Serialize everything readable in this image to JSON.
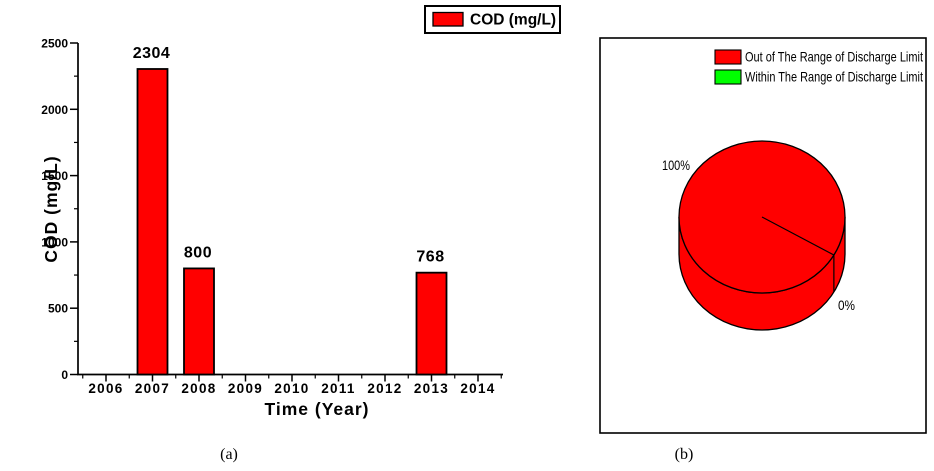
{
  "figure": {
    "background": "#FFFFFF",
    "caption_a": "(a)",
    "caption_b": "(b)"
  },
  "colors": {
    "bar_red": "#FF0000",
    "legend_green": "#00FF00",
    "axis_black": "#000000"
  },
  "chart_data": [
    {
      "type": "bar",
      "panel": "a",
      "title": "",
      "xlabel": "Time (Year)",
      "ylabel": "COD (mg/L)",
      "categories": [
        "2006",
        "2007",
        "2008",
        "2009",
        "2010",
        "2011",
        "2012",
        "2013",
        "2014"
      ],
      "values": [
        0,
        2304,
        800,
        0,
        0,
        0,
        0,
        768,
        0
      ],
      "value_labels": [
        "",
        "2304",
        "800",
        "",
        "",
        "",
        "",
        "768",
        ""
      ],
      "bar_color": "#FF0000",
      "bar_border_color": "#000000",
      "ylim": [
        0,
        2500
      ],
      "yticks": [
        0,
        500,
        1000,
        1500,
        2000,
        2500
      ],
      "minor_ytick_step": 250,
      "grid": false,
      "legend_position": "top-right",
      "legend": [
        {
          "label": "COD (mg/L)",
          "color": "#FF0000"
        }
      ]
    },
    {
      "type": "pie",
      "panel": "b",
      "style": "3d-cylinder",
      "legend_position": "top-right-inside",
      "slices": [
        {
          "label": "Out of The Range of Discharge Limit",
          "value": 100,
          "display": "100%",
          "color": "#FF0000"
        },
        {
          "label": "Within The Range of Discharge Limit",
          "value": 0,
          "display": "0%",
          "color": "#00FF00"
        }
      ]
    }
  ]
}
